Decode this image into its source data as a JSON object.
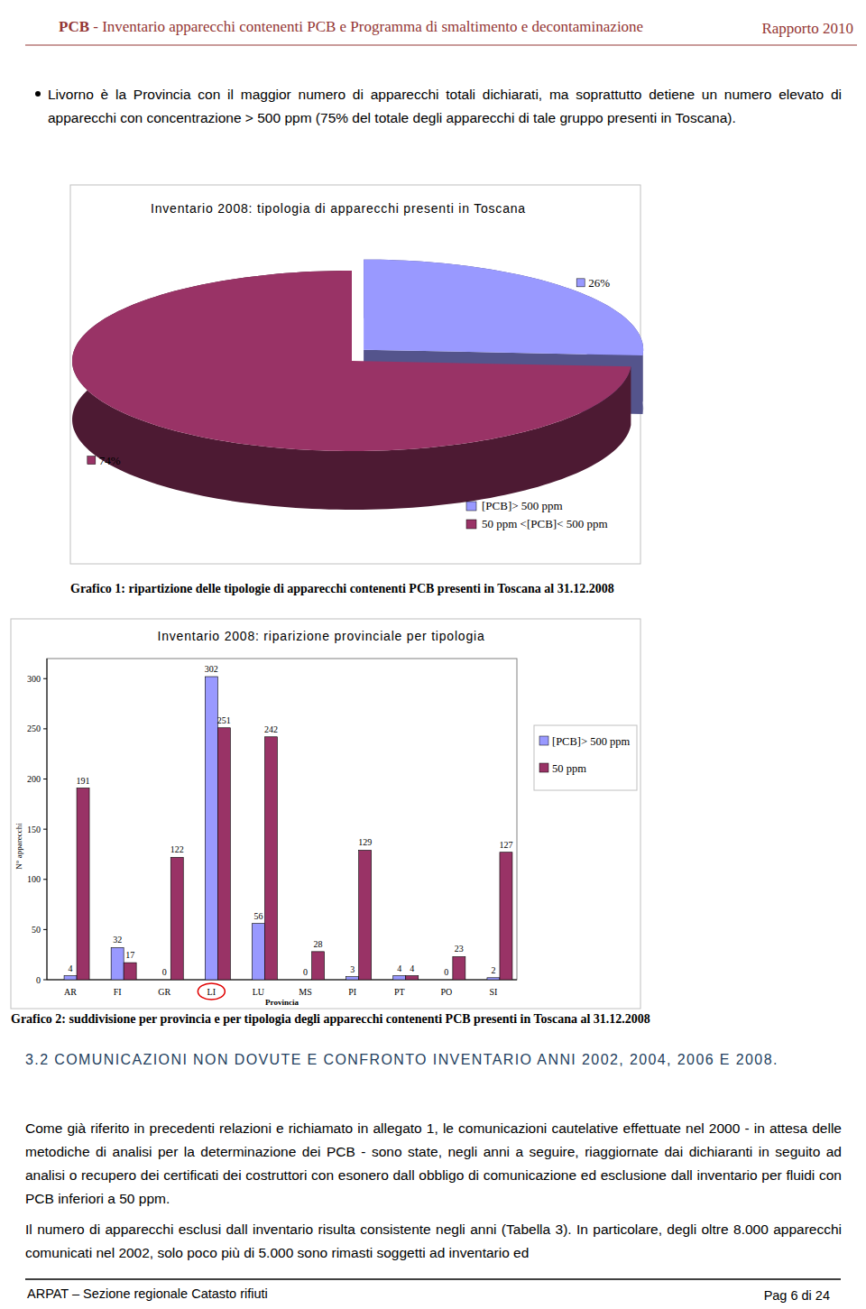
{
  "header": {
    "acronym": "PCB",
    "title": "- Inventario apparecchi contenenti PCB e Programma di smaltimento e decontaminazione",
    "report": "Rapporto 2010"
  },
  "bullet": "Livorno è la Provincia con il maggior numero di apparecchi totali dichiarati, ma soprattutto detiene un numero elevato di apparecchi con concentrazione > 500 ppm (75% del totale degli apparecchi di tale gruppo presenti in Toscana).",
  "chart_data": [
    {
      "type": "pie",
      "title": "Inventario 2008: tipologia di apparecchi presenti in Toscana",
      "categories": [
        "[PCB]> 500 ppm",
        "50 ppm <[PCB]< 500 ppm"
      ],
      "values": [
        26,
        74
      ],
      "value_labels": [
        "26%",
        "74%"
      ],
      "colors": [
        "#9999ff",
        "#993366"
      ],
      "legend": "bottom-right",
      "data_labels": true
    },
    {
      "type": "bar",
      "title": "Inventario 2008: riparizione provinciale per tipologia",
      "xlabel": "Provincia",
      "ylabel": "N° apparecchi",
      "categories": [
        "AR",
        "FI",
        "GR",
        "LI",
        "LU",
        "MS",
        "PI",
        "PT",
        "PO",
        "SI"
      ],
      "series": [
        {
          "name": "[PCB]> 500 ppm",
          "color": "#9999ff",
          "values": [
            4,
            32,
            0,
            302,
            56,
            0,
            3,
            4,
            0,
            2
          ]
        },
        {
          "name": "50 ppm",
          "color": "#993366",
          "values": [
            191,
            17,
            122,
            251,
            242,
            28,
            129,
            4,
            23,
            127
          ]
        }
      ],
      "ylim": [
        0,
        320
      ],
      "yticks": [
        0,
        50,
        100,
        150,
        200,
        250,
        300
      ],
      "grid": false,
      "legend": "right",
      "data_labels": true
    }
  ],
  "captions": [
    "Grafico 1: ripartizione delle tipologie di apparecchi contenenti PCB presenti in Toscana al 31.12.2008",
    "Grafico 2: suddivisione per provincia e per tipologia degli apparecchi contenenti PCB presenti in Toscana al 31.12.2008"
  ],
  "section": {
    "heading": "3.2 COMUNICAZIONI NON DOVUTE E CONFRONTO INVENTARIO ANNI 2002, 2004, 2006 E 2008.",
    "paragraphs": [
      "Come già riferito in precedenti relazioni e richiamato in allegato 1, le comunicazioni cautelative effettuate nel 2000 - in attesa delle metodiche di analisi per la determinazione dei PCB - sono state, negli anni a seguire, riaggiornate dai dichiaranti in seguito ad analisi o recupero dei certificati dei costruttori con esonero dall obbligo di comunicazione ed esclusione dall inventario per fluidi con PCB inferiori a 50 ppm.",
      "Il numero di apparecchi esclusi dall inventario risulta consistente negli anni (Tabella 3). In particolare, degli oltre 8.000 apparecchi comunicati nel 2002, solo poco più di 5.000 sono rimasti soggetti ad inventario ed"
    ]
  },
  "footer": {
    "left": "ARPAT – Sezione regionale Catasto rifiuti",
    "right": "Pag 6 di 24"
  }
}
